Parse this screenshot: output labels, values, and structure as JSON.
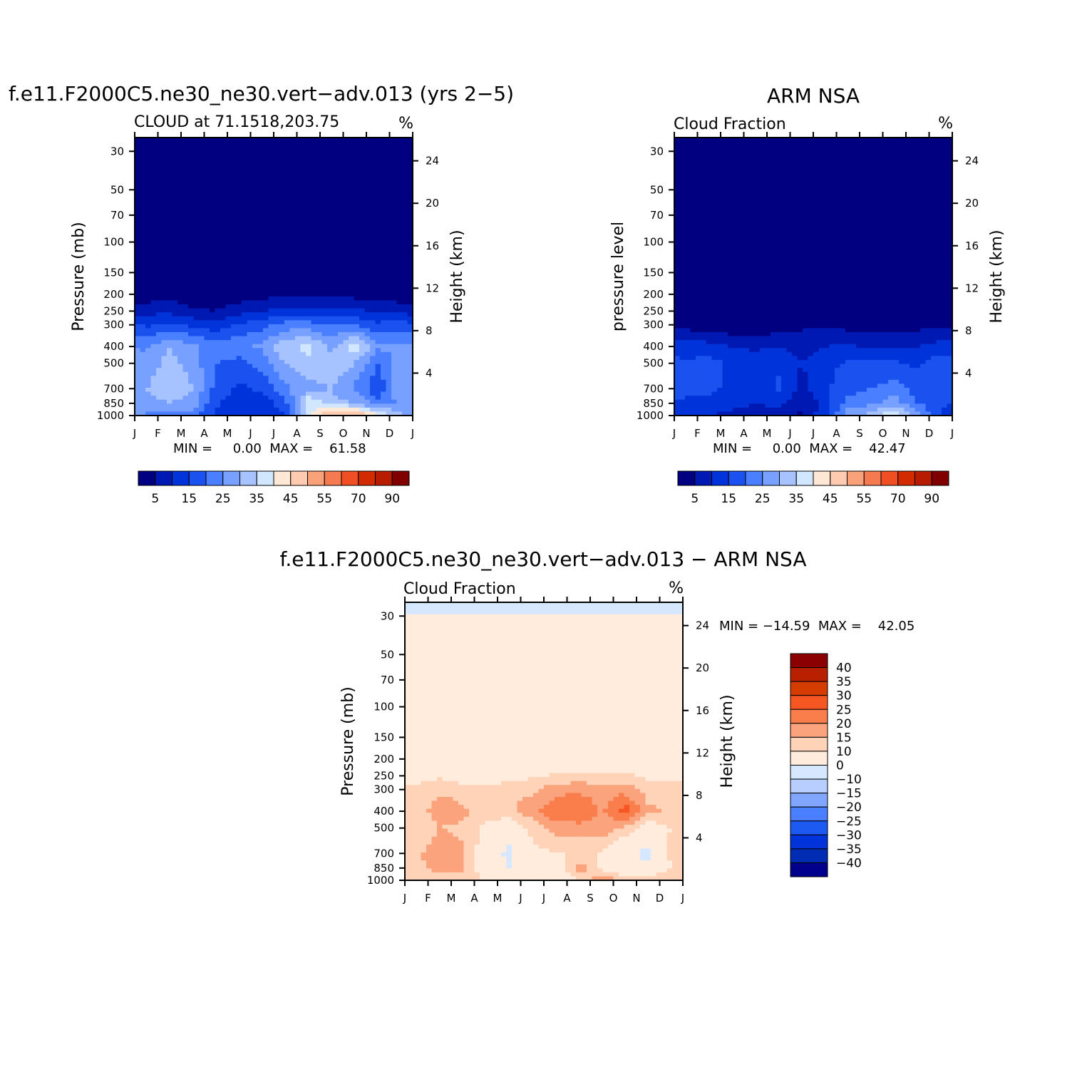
{
  "colors": {
    "blue_red": [
      "#000080",
      "#0019b3",
      "#0033d9",
      "#1a52f0",
      "#4a80ff",
      "#78a0ff",
      "#a6c2ff",
      "#d1e6ff",
      "#ffe8d6",
      "#ffcbb0",
      "#f9a27a",
      "#f67a4f",
      "#ef4f22",
      "#d22b00",
      "#b71c00",
      "#800000"
    ],
    "diff": [
      "#00008c",
      "#002db3",
      "#0033d9",
      "#1d5af2",
      "#4a7fff",
      "#80a6ff",
      "#b8ceff",
      "#d6e8ff",
      "#ffecdc",
      "#ffd3b8",
      "#fba37c",
      "#fa7d4c",
      "#f65722",
      "#d53d00",
      "#b82000",
      "#8b0000"
    ]
  },
  "panels": {
    "model": {
      "title": "f.e11.F2000C5.ne30_ne30.vert−adv.013 (yrs 2−5)",
      "subtitle": "CLOUD at 71.1518,203.75",
      "units": "%",
      "ylabel": "Pressure (mb)",
      "rlabel": "Height (km)",
      "minmax": "MIN =     0.00  MAX =    61.58"
    },
    "obs": {
      "title": "ARM NSA",
      "subtitle": "Cloud Fraction",
      "units": "%",
      "ylabel": "pressure level",
      "rlabel": "Height (km)",
      "minmax": "MIN =     0.00  MAX =    42.47"
    },
    "diff": {
      "title": "f.e11.F2000C5.ne30_ne30.vert−adv.013 − ARM NSA",
      "subtitle": "Cloud Fraction",
      "units": "%",
      "ylabel": "Pressure (mb)",
      "rlabel": "Height (km)",
      "minmax": "MIN = −14.59  MAX =    42.05"
    }
  },
  "chart_data": [
    {
      "type": "heatmap",
      "name": "model",
      "x_ticks": [
        "J",
        "F",
        "M",
        "A",
        "M",
        "J",
        "J",
        "A",
        "S",
        "O",
        "N",
        "D",
        "J"
      ],
      "pressure_ticks": [
        30,
        50,
        70,
        100,
        150,
        200,
        250,
        300,
        400,
        500,
        700,
        850,
        1000
      ],
      "height_ticks": [
        4,
        8,
        12,
        16,
        20,
        24
      ],
      "ylim": [
        1000,
        25
      ],
      "colorbar_labels": [
        "5",
        "15",
        "25",
        "35",
        "45",
        "55",
        "70",
        "90"
      ],
      "levels": [
        5,
        10,
        15,
        20,
        25,
        30,
        35,
        40,
        45,
        50,
        55,
        60,
        70,
        80,
        90
      ],
      "min": 0.0,
      "max": 61.58,
      "profile_pressure": [
        30,
        200,
        250,
        300,
        400,
        500,
        700,
        850,
        1000
      ],
      "monthly_profiles": [
        [
          0,
          2,
          8,
          14,
          24,
          27,
          30,
          28,
          24
        ],
        [
          0,
          3,
          9,
          16,
          30,
          32,
          34,
          30,
          24
        ],
        [
          0,
          1,
          6,
          14,
          26,
          28,
          30,
          28,
          22
        ],
        [
          0,
          1,
          5,
          12,
          22,
          20,
          18,
          16,
          14
        ],
        [
          0,
          2,
          8,
          16,
          24,
          18,
          14,
          12,
          12
        ],
        [
          0,
          3,
          10,
          18,
          26,
          22,
          16,
          12,
          12
        ],
        [
          0,
          4,
          12,
          22,
          34,
          30,
          24,
          18,
          14
        ],
        [
          0,
          4,
          12,
          22,
          36,
          34,
          28,
          40,
          38
        ],
        [
          0,
          4,
          12,
          20,
          28,
          34,
          30,
          32,
          52
        ],
        [
          0,
          3,
          11,
          20,
          38,
          30,
          24,
          30,
          54
        ],
        [
          0,
          2,
          9,
          16,
          26,
          20,
          16,
          22,
          42
        ],
        [
          0,
          2,
          8,
          18,
          26,
          28,
          30,
          26,
          30
        ]
      ]
    },
    {
      "type": "heatmap",
      "name": "obs",
      "x_ticks": [
        "J",
        "F",
        "M",
        "A",
        "M",
        "J",
        "J",
        "A",
        "S",
        "O",
        "N",
        "D",
        "J"
      ],
      "pressure_ticks": [
        30,
        50,
        70,
        100,
        150,
        200,
        250,
        300,
        400,
        500,
        700,
        850,
        1000
      ],
      "height_ticks": [
        4,
        8,
        12,
        16,
        20,
        24
      ],
      "ylim": [
        1000,
        25
      ],
      "colorbar_labels": [
        "5",
        "15",
        "25",
        "35",
        "45",
        "55",
        "70",
        "90"
      ],
      "levels": [
        5,
        10,
        15,
        20,
        25,
        30,
        35,
        40,
        45,
        50,
        55,
        60,
        70,
        80,
        90
      ],
      "min": 0.0,
      "max": 42.47,
      "profile_pressure": [
        30,
        200,
        250,
        300,
        400,
        500,
        700,
        850,
        1000
      ],
      "monthly_profiles": [
        [
          0,
          0,
          0,
          3,
          12,
          16,
          16,
          14,
          10
        ],
        [
          0,
          0,
          0,
          2,
          12,
          17,
          16,
          14,
          10
        ],
        [
          0,
          0,
          0,
          1,
          10,
          14,
          14,
          12,
          8
        ],
        [
          0,
          0,
          0,
          1,
          9,
          12,
          12,
          10,
          6
        ],
        [
          0,
          0,
          0,
          2,
          10,
          14,
          16,
          12,
          8
        ],
        [
          0,
          0,
          1,
          4,
          8,
          10,
          8,
          6,
          4
        ],
        [
          0,
          0,
          1,
          4,
          10,
          13,
          14,
          12,
          14
        ],
        [
          0,
          0,
          1,
          3,
          11,
          16,
          18,
          22,
          28
        ],
        [
          0,
          0,
          1,
          2,
          9,
          16,
          20,
          24,
          32
        ],
        [
          0,
          0,
          0,
          2,
          10,
          16,
          22,
          28,
          40
        ],
        [
          0,
          0,
          0,
          3,
          10,
          14,
          18,
          20,
          28
        ],
        [
          0,
          0,
          1,
          4,
          12,
          18,
          18,
          16,
          14
        ]
      ]
    },
    {
      "type": "heatmap",
      "name": "diff",
      "x_ticks": [
        "J",
        "F",
        "M",
        "A",
        "M",
        "J",
        "J",
        "A",
        "S",
        "O",
        "N",
        "D",
        "J"
      ],
      "pressure_ticks": [
        30,
        50,
        70,
        100,
        150,
        200,
        250,
        300,
        400,
        500,
        700,
        850,
        1000
      ],
      "height_ticks": [
        4,
        8,
        12,
        16,
        20,
        24
      ],
      "ylim": [
        1000,
        25
      ],
      "colorbar_labels": [
        "40",
        "35",
        "30",
        "25",
        "20",
        "15",
        "10",
        "0",
        "−10",
        "−15",
        "−20",
        "−25",
        "−30",
        "−35",
        "−40"
      ],
      "levels": [
        -40,
        -35,
        -30,
        -25,
        -20,
        -15,
        -10,
        0,
        10,
        15,
        20,
        25,
        30,
        35,
        40
      ],
      "min": -14.59,
      "max": 42.05
    }
  ]
}
